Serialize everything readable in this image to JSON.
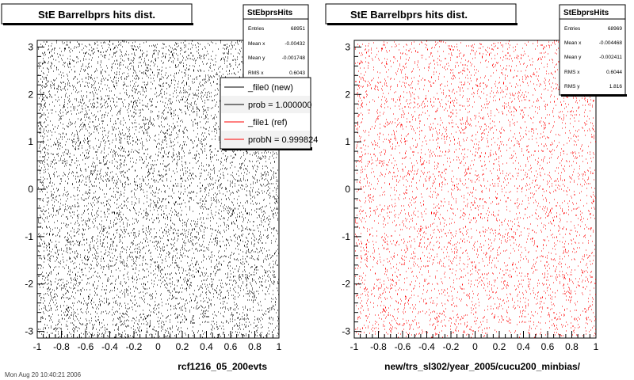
{
  "chart_data": [
    {
      "type": "scatter",
      "title": "StE Barrelbprs hits dist.",
      "xlabel": "rcf1216_05_200evts",
      "ylabel": "",
      "xlim": [
        -1,
        1
      ],
      "ylim": [
        -3.14,
        3.14
      ],
      "x_ticks": [
        "-1",
        "-0.8",
        "-0.6",
        "-0.4",
        "-0.2",
        "0",
        "0.2",
        "0.4",
        "0.6",
        "0.8",
        "1"
      ],
      "y_ticks": [
        "-3",
        "-2",
        "-1",
        "0",
        "1",
        "2",
        "3"
      ],
      "marker_color": "#000000",
      "density": "uniform",
      "grid": false,
      "stats_box": {
        "title": "StEbprsHits",
        "rows": [
          {
            "label": "Entries",
            "value": "68951"
          },
          {
            "label": "Mean x",
            "value": "-0.00432"
          },
          {
            "label": "Mean y",
            "value": "-0.001748"
          },
          {
            "label": "RMS x",
            "value": "0.6043"
          }
        ]
      },
      "legend": {
        "placement": "top-right",
        "entries": [
          {
            "label": "_file0 (new)",
            "color": "#000000"
          },
          {
            "label": "prob = 1.000000",
            "color": "#000000"
          },
          {
            "label": "_file1 (ref)",
            "color": "#ff0000"
          },
          {
            "label": "probN = 0.999824",
            "color": "#ff0000"
          }
        ]
      }
    },
    {
      "type": "scatter",
      "title": "StE Barrelbprs hits dist.",
      "xlabel": "new/trs_sl302/year_2005/cucu200_minbias/",
      "ylabel": "",
      "xlim": [
        -1,
        1
      ],
      "ylim": [
        -3.14,
        3.14
      ],
      "x_ticks": [
        "-1",
        "-0.8",
        "-0.6",
        "-0.4",
        "-0.2",
        "0",
        "0.2",
        "0.4",
        "0.6",
        "0.8",
        "1"
      ],
      "y_ticks": [
        "-3",
        "-2",
        "-1",
        "0",
        "1",
        "2",
        "3"
      ],
      "marker_color": "#ff0000",
      "density": "uniform",
      "grid": false,
      "stats_box": {
        "title": "StEbprsHits",
        "rows": [
          {
            "label": "Entries",
            "value": "68969"
          },
          {
            "label": "Mean x",
            "value": "-0.004468"
          },
          {
            "label": "Mean y",
            "value": "-0.002411"
          },
          {
            "label": "RMS x",
            "value": "0.6044"
          },
          {
            "label": "RMS y",
            "value": "1.816"
          }
        ]
      }
    }
  ],
  "footer_text": "Mon Aug 20 10:40:21 2006"
}
